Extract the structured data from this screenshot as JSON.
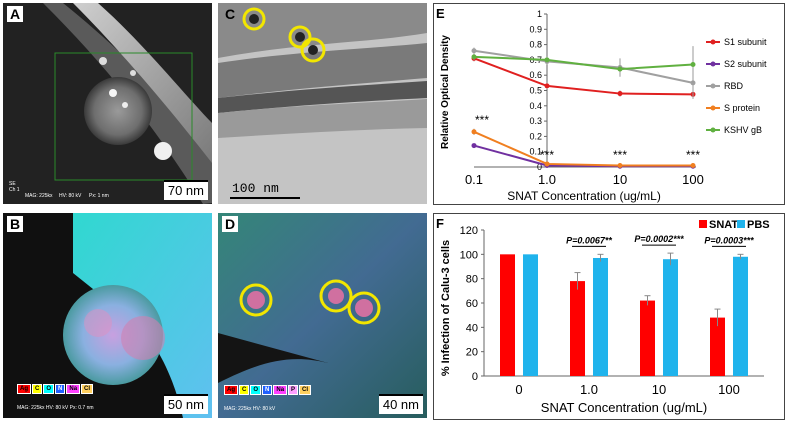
{
  "panels": {
    "A": {
      "letter": "A",
      "scale": "70 nm",
      "meta": [
        "SE",
        "Ch 1",
        "MAG: 225kx",
        "HV: 80 kV",
        "Px: 1 nm"
      ]
    },
    "B": {
      "letter": "B",
      "scale": "50 nm",
      "meta": "MAG: 225kx   HV: 80 kV   Px: 0.7 nm",
      "elements": [
        "Ag",
        "C",
        "O",
        "N",
        "Na",
        "Cl"
      ]
    },
    "C": {
      "letter": "C",
      "scale": "100 nm"
    },
    "D": {
      "letter": "D",
      "scale": "40 nm",
      "meta": "MAG: 225kx  HV: 80 kV",
      "elements": [
        "Ag",
        "C",
        "O",
        "N",
        "Na",
        "P",
        "Cl"
      ]
    }
  },
  "colors": {
    "S1 subunit": "#e02020",
    "S2 subunit": "#7030a0",
    "RBD": "#a0a0a0",
    "S protein": "#f07f20",
    "KSHV gB": "#60b040",
    "SNAT": "#ff0000",
    "PBS": "#1fb3ec",
    "Ag": "#ff0000",
    "C": "#ffff00",
    "O": "#00ffff",
    "N": "#2060ff",
    "Na": "#ff40ff",
    "P": "#ffa0ff",
    "Cl": "#ffd060"
  },
  "chart_data": [
    {
      "panel": "E",
      "type": "line",
      "ylabel": "Relative Optical Density",
      "xlabel": "SNAT Concentration (ug/mL)",
      "categories": [
        "0.1",
        "1.0",
        "10",
        "100"
      ],
      "ylim": [
        0,
        1
      ],
      "yticks": [
        "0",
        "0.1",
        "0.2",
        "0.3",
        "0.4",
        "0.5",
        "0.6",
        "0.7",
        "0.8",
        "0.9",
        "1"
      ],
      "series": [
        {
          "name": "S1 subunit",
          "values": [
            0.71,
            0.53,
            0.48,
            0.475
          ],
          "errors": [
            0.02,
            0.02,
            0.02,
            0.03
          ]
        },
        {
          "name": "S2 subunit",
          "values": [
            0.14,
            0.01,
            0.005,
            0.005
          ],
          "errors": [
            0.01,
            0.005,
            0.005,
            0.005
          ]
        },
        {
          "name": "RBD",
          "values": [
            0.76,
            0.69,
            0.65,
            0.55
          ],
          "errors": [
            0.02,
            0.02,
            0.06,
            0.1
          ]
        },
        {
          "name": "S protein",
          "values": [
            0.23,
            0.02,
            0.01,
            0.01
          ],
          "errors": [
            0.02,
            0.005,
            0.005,
            0.005
          ]
        },
        {
          "name": "KSHV gB",
          "values": [
            0.72,
            0.7,
            0.64,
            0.67
          ],
          "errors": [
            0.02,
            0.02,
            0.04,
            0.12
          ]
        }
      ],
      "annotations": [
        "***",
        "***",
        "***",
        "***"
      ]
    },
    {
      "panel": "F",
      "type": "bar",
      "ylabel": "% Infection of Calu-3 cells",
      "xlabel": "SNAT Concentration (ug/mL)",
      "categories": [
        "0",
        "1.0",
        "10",
        "100"
      ],
      "ylim": [
        0,
        120
      ],
      "yticks": [
        "0",
        "20",
        "40",
        "60",
        "80",
        "100",
        "120"
      ],
      "series": [
        {
          "name": "SNAT",
          "values": [
            100,
            78,
            62,
            48
          ],
          "errors": [
            0,
            7,
            4,
            7
          ]
        },
        {
          "name": "PBS",
          "values": [
            100,
            97,
            96,
            98
          ],
          "errors": [
            0,
            3,
            5,
            2
          ]
        }
      ],
      "pvalues": [
        "",
        "P=0.0067**",
        "P=0.0002***",
        "P=0.0003***"
      ]
    }
  ],
  "letters": {
    "E": "E",
    "F": "F"
  }
}
